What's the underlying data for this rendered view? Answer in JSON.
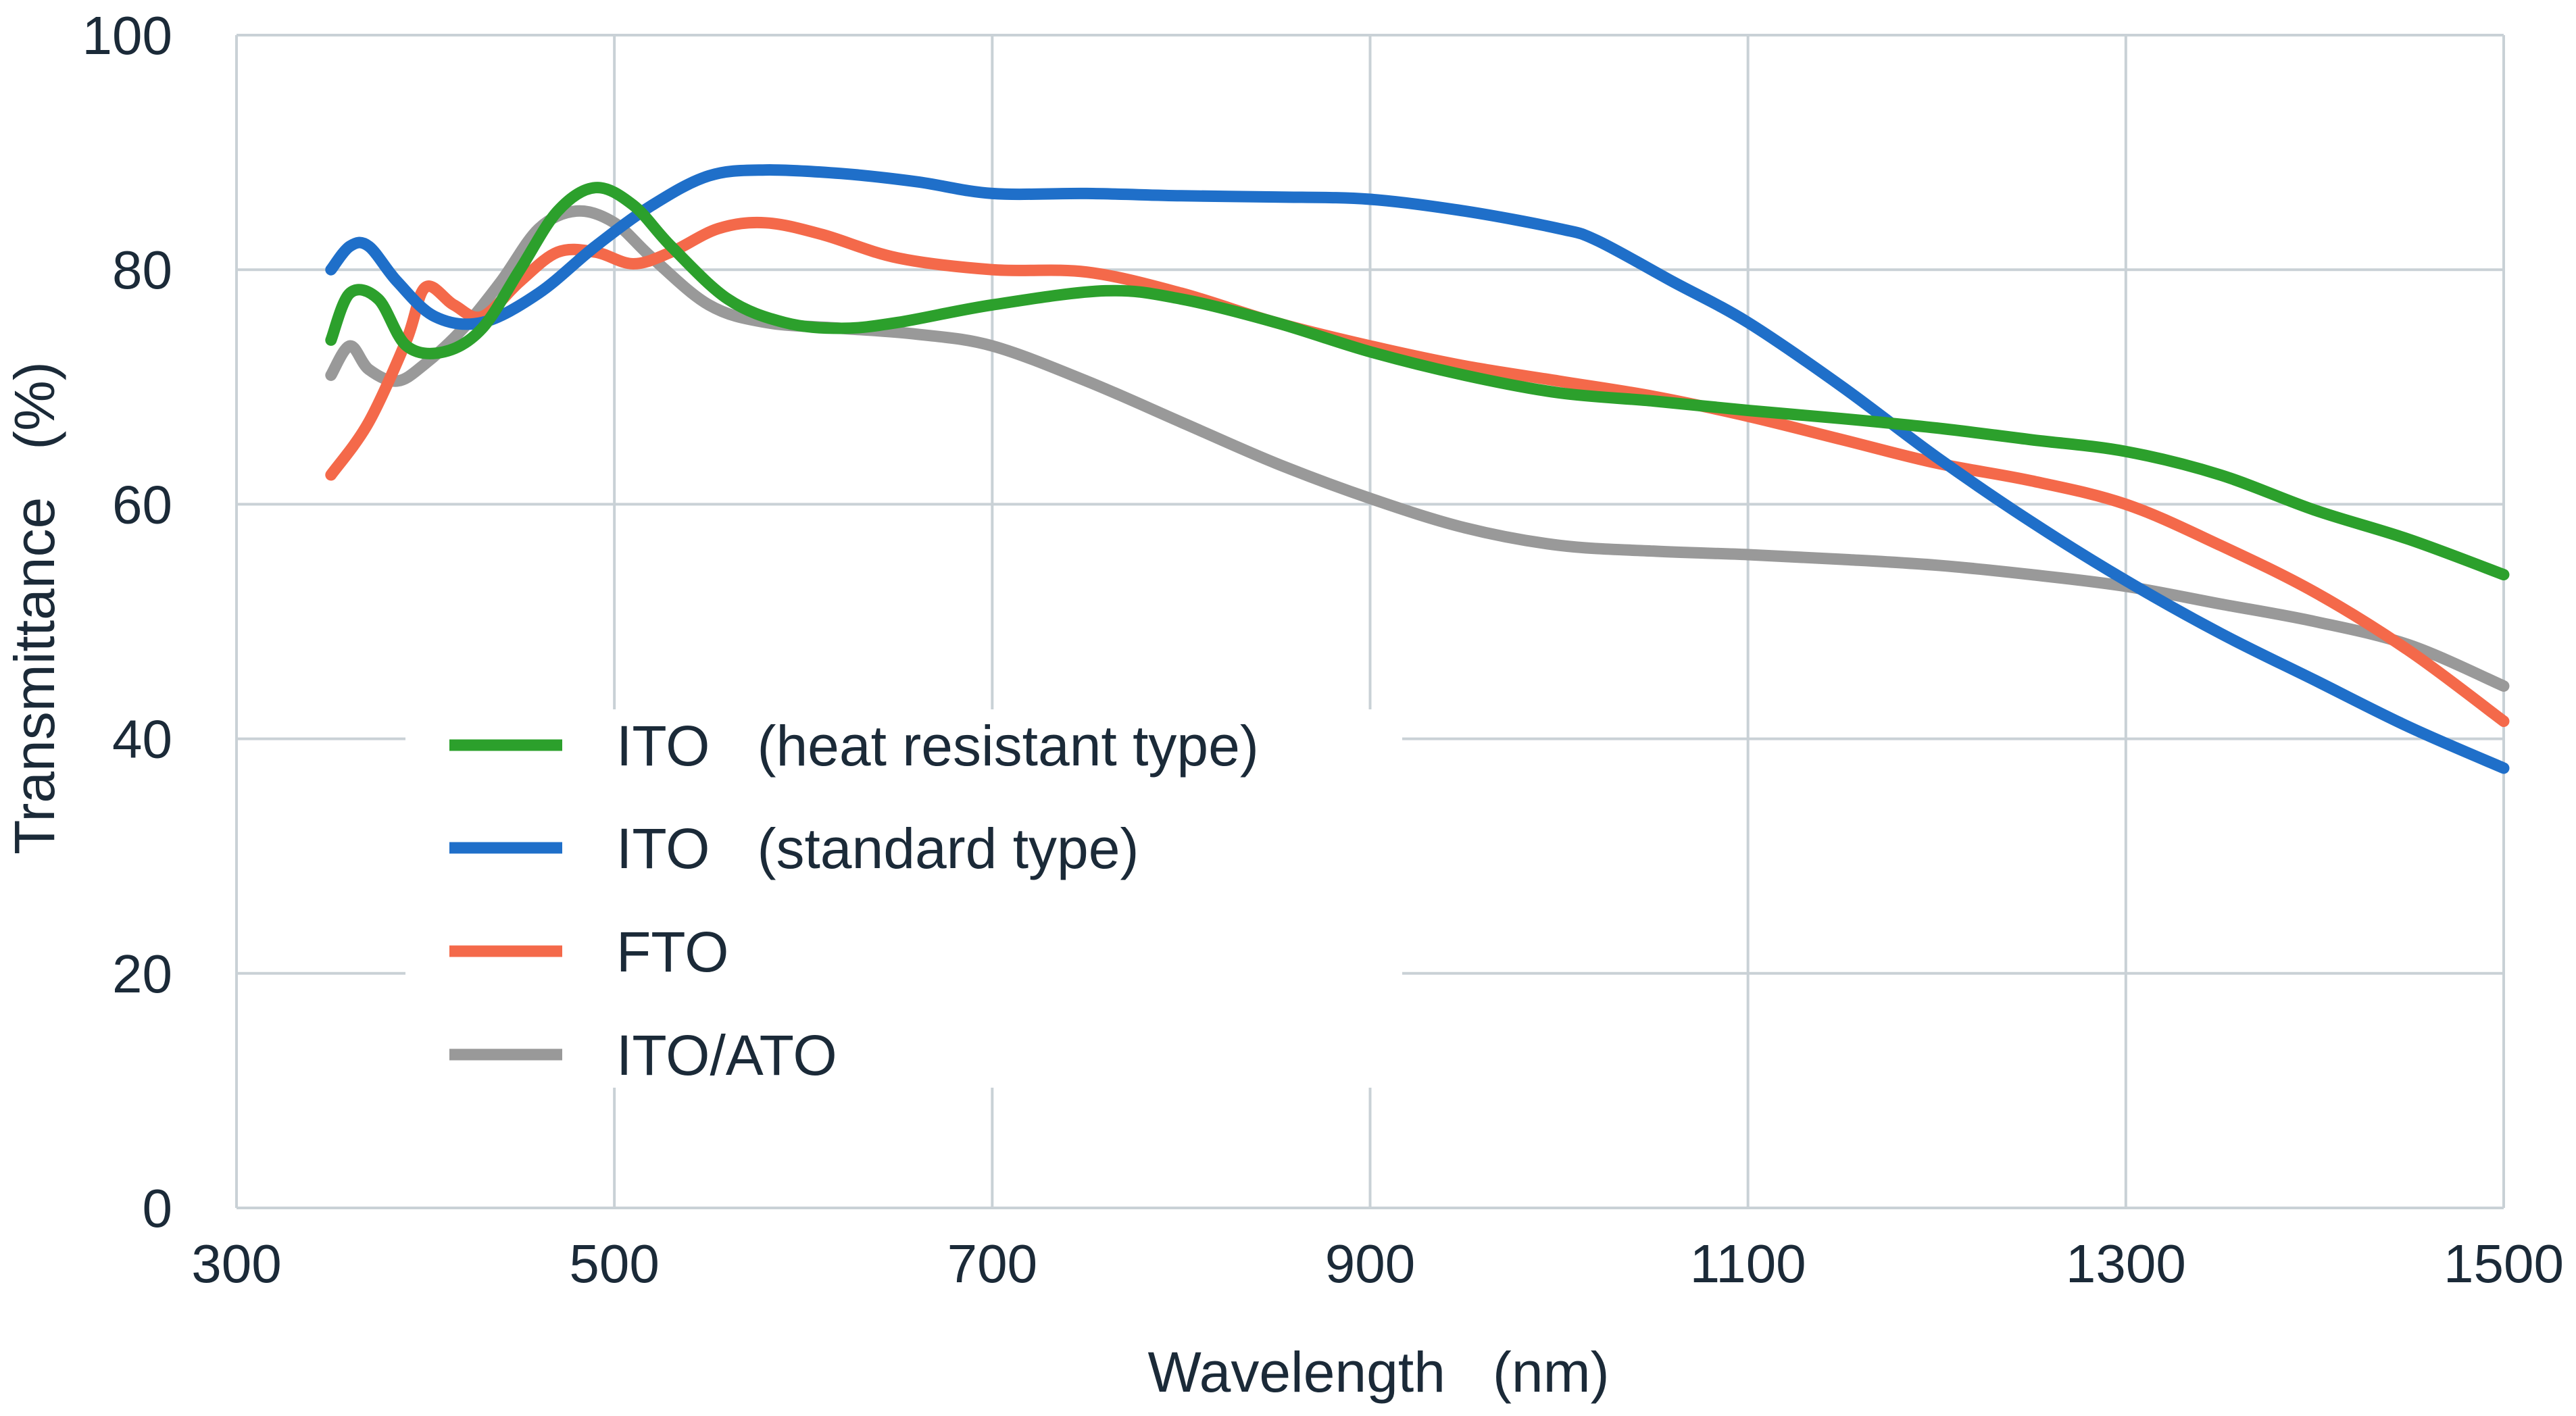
{
  "chart_data": {
    "type": "line",
    "xlabel": "Wavelength (nm)",
    "ylabel": "Transmittance (%)",
    "xlim": [
      300,
      1500
    ],
    "ylim": [
      0,
      100
    ],
    "xticks": [
      "300",
      "500",
      "700",
      "900",
      "1100",
      "1300",
      "1500"
    ],
    "yticks": [
      "0",
      "20",
      "40",
      "60",
      "80",
      "100"
    ],
    "grid": true,
    "legend_position": "lower-left",
    "series": [
      {
        "name": "ITO (heat resistant type)",
        "color": "#2ca02c",
        "x": [
          350,
          360,
          375,
          390,
          410,
          430,
          450,
          470,
          490,
          510,
          530,
          560,
          590,
          620,
          650,
          700,
          760,
          800,
          850,
          900,
          950,
          1000,
          1050,
          1100,
          1150,
          1200,
          1250,
          1300,
          1350,
          1400,
          1450,
          1500
        ],
        "y": [
          74,
          78,
          77.5,
          73.5,
          73,
          75,
          80,
          85,
          87,
          85.5,
          82,
          77.5,
          75.5,
          75,
          75.5,
          77,
          78.2,
          77.5,
          75.5,
          73,
          71,
          69.5,
          68.8,
          68,
          67.3,
          66.5,
          65.5,
          64.5,
          62.5,
          59.5,
          57,
          54
        ]
      },
      {
        "name": "ITO (standard type)",
        "color": "#1f6fc9",
        "x": [
          350,
          360,
          370,
          385,
          405,
          430,
          460,
          490,
          520,
          550,
          580,
          620,
          660,
          700,
          750,
          800,
          850,
          900,
          950,
          1000,
          1020,
          1060,
          1100,
          1150,
          1200,
          1250,
          1300,
          1350,
          1400,
          1450,
          1500
        ],
        "y": [
          80,
          82,
          82,
          79,
          76,
          75.5,
          78,
          82,
          85.5,
          88,
          88.5,
          88.2,
          87.5,
          86.5,
          86.5,
          86.3,
          86.2,
          86,
          85,
          83.5,
          82.5,
          79,
          75.5,
          70,
          64,
          58.5,
          53.5,
          49,
          45,
          41,
          37.5
        ]
      },
      {
        "name": "FTO",
        "color": "#f4694a",
        "x": [
          350,
          370,
          390,
          400,
          415,
          430,
          450,
          470,
          490,
          510,
          530,
          555,
          580,
          610,
          650,
          700,
          750,
          800,
          850,
          900,
          950,
          1000,
          1050,
          1100,
          1150,
          1200,
          1250,
          1300,
          1350,
          1400,
          1450,
          1500
        ],
        "y": [
          62.5,
          67,
          74,
          78.5,
          77,
          76,
          79,
          81.5,
          81.5,
          80.5,
          81.5,
          83.5,
          84,
          83,
          81,
          80,
          79.8,
          78,
          75.5,
          73.5,
          71.8,
          70.5,
          69.2,
          67.5,
          65.5,
          63.5,
          62,
          60,
          56.5,
          52.5,
          47.5,
          41.5
        ]
      },
      {
        "name": "ITO/ATO",
        "color": "#999999",
        "x": [
          350,
          360,
          370,
          385,
          400,
          420,
          440,
          460,
          480,
          500,
          520,
          550,
          580,
          620,
          660,
          700,
          750,
          800,
          850,
          900,
          950,
          1000,
          1050,
          1100,
          1150,
          1200,
          1250,
          1300,
          1350,
          1400,
          1450,
          1500
        ],
        "y": [
          71,
          73.5,
          71.5,
          70.5,
          72,
          75,
          79,
          83.5,
          85,
          84,
          81,
          77,
          75.5,
          75,
          74.5,
          73.5,
          70.5,
          67,
          63.5,
          60.5,
          58,
          56.5,
          56,
          55.7,
          55.3,
          54.8,
          54,
          53,
          51.5,
          50,
          48,
          44.5
        ]
      }
    ]
  },
  "legend": {
    "items": [
      "ITO   (heat resistant type)",
      "ITO   (standard type)",
      "FTO",
      "ITO/ATO"
    ]
  },
  "axes": {
    "x_title": "Wavelength   (nm)",
    "y_title": "Transmittance   (%)"
  }
}
